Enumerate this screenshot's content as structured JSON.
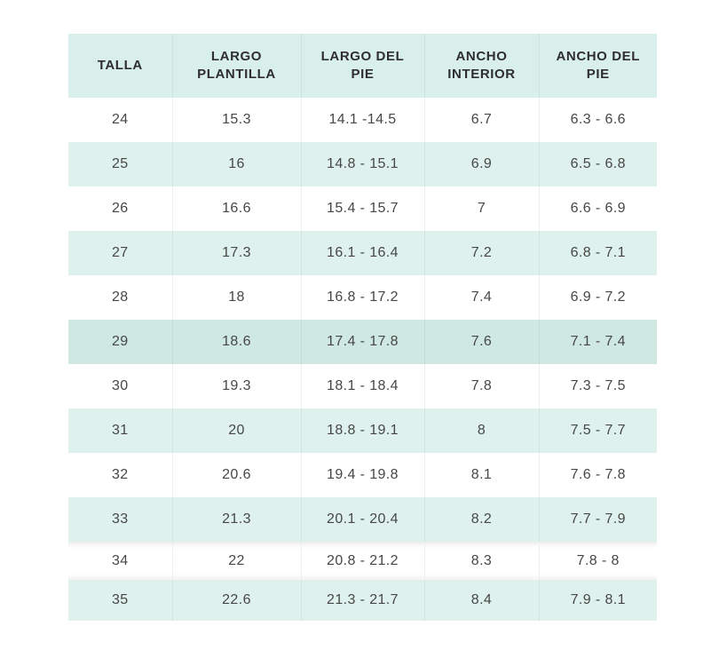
{
  "table": {
    "name": "tabla-de-tallas",
    "columns": [
      {
        "label": "TALLA"
      },
      {
        "label": "LARGO PLANTILLA"
      },
      {
        "label": "LARGO DEL PIE"
      },
      {
        "label": "ANCHO INTERIOR"
      },
      {
        "label": "ANCHO DEL PIE"
      }
    ],
    "rows": [
      {
        "cells": [
          "24",
          "15.3",
          "14.1 -14.5",
          "6.7",
          "6.3 - 6.6"
        ]
      },
      {
        "cells": [
          "25",
          "16",
          "14.8 - 15.1",
          "6.9",
          "6.5 - 6.8"
        ]
      },
      {
        "cells": [
          "26",
          "16.6",
          "15.4 - 15.7",
          "7",
          "6.6 - 6.9"
        ]
      },
      {
        "cells": [
          "27",
          "17.3",
          "16.1 - 16.4",
          "7.2",
          "6.8 - 7.1"
        ]
      },
      {
        "cells": [
          "28",
          "18",
          "16.8 - 17.2",
          "7.4",
          "6.9 - 7.2"
        ]
      },
      {
        "cells": [
          "29",
          "18.6",
          "17.4 - 17.8",
          "7.6",
          "7.1 - 7.4"
        ],
        "highlighted": true
      },
      {
        "cells": [
          "30",
          "19.3",
          "18.1 - 18.4",
          "7.8",
          "7.3 - 7.5"
        ]
      },
      {
        "cells": [
          "31",
          "20",
          "18.8 - 19.1",
          "8",
          "7.5 - 7.7"
        ]
      },
      {
        "cells": [
          "32",
          "20.6",
          "19.4 - 19.8",
          "8.1",
          "7.6 - 7.8"
        ]
      },
      {
        "cells": [
          "33",
          "21.3",
          "20.1 - 20.4",
          "8.2",
          "7.7 - 7.9"
        ]
      },
      {
        "cells": [
          "34",
          "22",
          "20.8 - 21.2",
          "8.3",
          "7.8 - 8"
        ],
        "shadowed": true
      },
      {
        "cells": [
          "35",
          "22.6",
          "21.3 - 21.7",
          "8.4",
          "7.9 - 8.1"
        ]
      }
    ],
    "colors": {
      "header_bg": "#d9efeb",
      "row_bg": "#ffffff",
      "row_alt_bg": "#def1ed",
      "row_highlight_bg": "#cfe8e2",
      "text": "#474747",
      "header_text": "#2e2e2e"
    }
  }
}
